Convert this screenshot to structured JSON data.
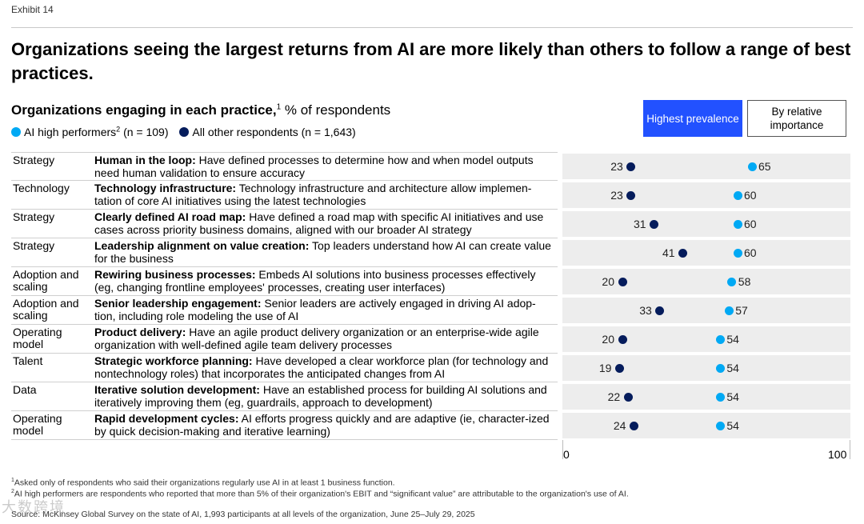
{
  "exhibit": "Exhibit 14",
  "title": "Organizations seeing the largest returns from AI are more likely than others to follow a range of best practices.",
  "subtitle": {
    "bold": "Organizations engaging in each practice,",
    "sup": "1",
    "rest": " % of respondents"
  },
  "legend": {
    "high_label": "AI high performers",
    "high_sup": "2",
    "high_n": " (n = 109)",
    "other_label": "All other respondents (n = 1,643)"
  },
  "buttons": {
    "highest": "Highest prevalence",
    "relative": "By relative importance"
  },
  "colors": {
    "high": "#00a9f4",
    "other": "#051c5c",
    "accent": "#2251ff"
  },
  "chart_data": {
    "type": "scatter",
    "xlim": [
      0,
      100
    ],
    "ticks": [
      "0",
      "100"
    ],
    "series": [
      {
        "name": "AI high performers",
        "values": [
          65,
          60,
          60,
          60,
          58,
          57,
          54,
          54,
          54,
          54
        ]
      },
      {
        "name": "All other respondents",
        "values": [
          23,
          23,
          31,
          41,
          20,
          33,
          20,
          19,
          22,
          24
        ]
      }
    ],
    "rows": [
      {
        "category": "Strategy",
        "name": "Human in the loop:",
        "desc": " Have defined processes to determine how and when model outputs need human validation to ensure accuracy"
      },
      {
        "category": "Technology",
        "name": "Technology infrastructure:",
        "desc": " Technology infrastructure and architecture allow implemen-tation of core AI initiatives using the latest technologies"
      },
      {
        "category": "Strategy",
        "name": "Clearly defined AI road map:",
        "desc": " Have defined a road map with specific AI initiatives and use cases across priority business domains, aligned with our broader AI strategy"
      },
      {
        "category": "Strategy",
        "name": "Leadership alignment on value creation:",
        "desc": " Top leaders understand how AI can create value for the business"
      },
      {
        "category": "Adoption and scaling",
        "name": "Rewiring business processes:",
        "desc": " Embeds AI solutions into business processes effectively (eg, changing frontline employees' processes, creating user interfaces)"
      },
      {
        "category": "Adoption and scaling",
        "name": "Senior leadership engagement:",
        "desc": " Senior leaders are actively engaged in driving AI adop-tion, including role modeling the use of AI"
      },
      {
        "category": "Operating model",
        "name": "Product delivery:",
        "desc": " Have an agile product delivery organization or an enterprise-wide agile organization with well-defined agile team delivery processes"
      },
      {
        "category": "Talent",
        "name": "Strategic workforce planning:",
        "desc": " Have developed a clear workforce plan (for technology and nontechnology roles) that incorporates the anticipated changes from AI"
      },
      {
        "category": "Data",
        "name": "Iterative solution development:",
        "desc": " Have an established process for building AI solutions and iteratively improving them (eg, guardrails, approach to development)"
      },
      {
        "category": "Operating model",
        "name": "Rapid development cycles:",
        "desc": " AI efforts progress quickly and are adaptive (ie, character-ized by quick decision-making and iterative learning)"
      }
    ]
  },
  "footnotes": [
    {
      "sup": "1",
      "text": "Asked only of respondents who said their organizations regularly use AI in at least 1 business function."
    },
    {
      "sup": "2",
      "text": "AI high performers are respondents who reported that more than 5% of their organization's EBIT and “significant value” are attributable to the organization's use of AI."
    },
    {
      "sup": "",
      "text": "Source: McKinsey Global Survey on the state of AI, 1,993 participants at all levels of the organization, June 25–July 29, 2025"
    }
  ],
  "watermark": "大数跨境"
}
